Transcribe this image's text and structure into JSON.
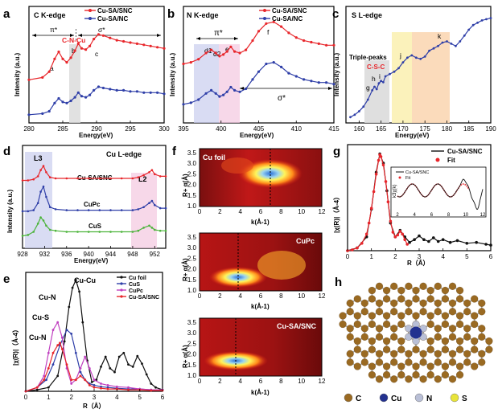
{
  "chart_data": [
    {
      "id": "a",
      "type": "line",
      "panel_label": "a",
      "title": "C K-edge",
      "xlabel": "Energy(eV)",
      "ylabel": "Intensity (a.u.)",
      "xlim": [
        280,
        300
      ],
      "xticks": [
        "280",
        "285",
        "290",
        "295",
        "300"
      ],
      "series": [
        {
          "name": "Cu-SA/SNC",
          "color": "#e8262b",
          "x": [
            280,
            282,
            283,
            283.8,
            284.4,
            285,
            285.6,
            286.2,
            286.8,
            287.3,
            287.8,
            288.4,
            289,
            289.6,
            290.3,
            291,
            292,
            293,
            294,
            295,
            296,
            297,
            298,
            299,
            300
          ],
          "y": [
            0.37,
            0.39,
            0.44,
            0.55,
            0.61,
            0.55,
            0.52,
            0.56,
            0.62,
            0.68,
            0.64,
            0.63,
            0.66,
            0.72,
            0.76,
            0.75,
            0.73,
            0.71,
            0.7,
            0.69,
            0.68,
            0.67,
            0.66,
            0.65,
            0.64
          ]
        },
        {
          "name": "Cu-SA/NC",
          "color": "#2f3fa8",
          "x": [
            280,
            282,
            283,
            283.8,
            284.4,
            285,
            285.6,
            286.2,
            286.8,
            287.3,
            287.8,
            288.4,
            289,
            289.6,
            290.3,
            291,
            292,
            293,
            294,
            295,
            296,
            297,
            298,
            299,
            300
          ],
          "y": [
            0.07,
            0.08,
            0.1,
            0.17,
            0.21,
            0.18,
            0.17,
            0.19,
            0.22,
            0.26,
            0.23,
            0.22,
            0.24,
            0.28,
            0.31,
            0.3,
            0.29,
            0.28,
            0.28,
            0.27,
            0.27,
            0.26,
            0.26,
            0.26,
            0.25
          ]
        }
      ],
      "annotations": [
        "π*",
        "σ*",
        "C-N-Cu",
        "a",
        "b",
        "c"
      ]
    },
    {
      "id": "b",
      "type": "line",
      "panel_label": "b",
      "title": "N K-edge",
      "xlabel": "Energy(eV)",
      "ylabel": "Intensity (a.u.)",
      "xlim": [
        395,
        415
      ],
      "xticks": [
        "395",
        "400",
        "405",
        "410",
        "415"
      ],
      "series": [
        {
          "name": "Cu-SA/SNC",
          "color": "#e8262b",
          "x": [
            395,
            396,
            397,
            398,
            398.7,
            399.3,
            399.8,
            400.3,
            400.8,
            401.3,
            401.8,
            402.5,
            403.3,
            404.2,
            405,
            406,
            407,
            408,
            409,
            410,
            411,
            412,
            413,
            414,
            415
          ],
          "y": [
            0.55,
            0.56,
            0.58,
            0.62,
            0.64,
            0.62,
            0.6,
            0.61,
            0.63,
            0.66,
            0.63,
            0.62,
            0.64,
            0.7,
            0.76,
            0.81,
            0.82,
            0.79,
            0.75,
            0.72,
            0.7,
            0.69,
            0.68,
            0.67,
            0.67
          ]
        },
        {
          "name": "Cu-SA/NC",
          "color": "#2f3fa8",
          "x": [
            395,
            396,
            397,
            398,
            398.7,
            399.3,
            399.8,
            400.3,
            400.8,
            401.3,
            401.8,
            402.5,
            403.3,
            404.2,
            405,
            406,
            407,
            408,
            409,
            410,
            411,
            412,
            413,
            414,
            415
          ],
          "y": [
            0.52,
            0.53,
            0.55,
            0.59,
            0.61,
            0.59,
            0.57,
            0.58,
            0.6,
            0.63,
            0.61,
            0.6,
            0.62,
            0.68,
            0.73,
            0.78,
            0.79,
            0.76,
            0.72,
            0.7,
            0.68,
            0.67,
            0.66,
            0.66,
            0.65
          ]
        }
      ],
      "annotations": [
        "π*",
        "σ*",
        "d1",
        "d2",
        "e",
        "f"
      ]
    },
    {
      "id": "c",
      "type": "line",
      "panel_label": "c",
      "title": "S L-edge",
      "xlabel": "Energy(eV)",
      "ylabel": "Intensity (a.u.)",
      "xlim": [
        157,
        190
      ],
      "xticks": [
        "160",
        "165",
        "170",
        "175",
        "180",
        "185",
        "190"
      ],
      "series": [
        {
          "name": "",
          "color": "#2f3fa8",
          "x": [
            158,
            159,
            160,
            161,
            162,
            163,
            163.5,
            164,
            164.5,
            165,
            165.5,
            166,
            167,
            168,
            169,
            170,
            171,
            172,
            173,
            174,
            175,
            176,
            177,
            178,
            179,
            180,
            181,
            182,
            183,
            184,
            185,
            186,
            187,
            188,
            189,
            190
          ],
          "y": [
            0.05,
            0.07,
            0.1,
            0.14,
            0.2,
            0.28,
            0.31,
            0.29,
            0.34,
            0.36,
            0.35,
            0.4,
            0.42,
            0.44,
            0.47,
            0.52,
            0.56,
            0.58,
            0.56,
            0.55,
            0.57,
            0.62,
            0.64,
            0.66,
            0.69,
            0.7,
            0.68,
            0.66,
            0.7,
            0.75,
            0.8,
            0.84,
            0.86,
            0.88,
            0.89,
            0.9
          ]
        }
      ],
      "annotations": [
        "Triple-peaks",
        "C-S-C",
        "g",
        "h",
        "i",
        "j",
        "k"
      ]
    },
    {
      "id": "d",
      "type": "line",
      "panel_label": "d",
      "title": "Cu L-edge",
      "xlabel": "Energy(eV)",
      "ylabel": "Intensity (a.u.)",
      "xlim": [
        928,
        954
      ],
      "xticks": [
        "928",
        "932",
        "936",
        "940",
        "944",
        "948",
        "952"
      ],
      "series": [
        {
          "name": "Cu-SA/SNC",
          "color": "#e8262b",
          "x": [
            928,
            929,
            930,
            930.8,
            931.3,
            931.8,
            932.3,
            933,
            934,
            936,
            938,
            940,
            942,
            944,
            946,
            948,
            949,
            950,
            951,
            951.5,
            952,
            953,
            954
          ],
          "y": [
            0.66,
            0.66,
            0.67,
            0.7,
            0.76,
            0.8,
            0.74,
            0.69,
            0.68,
            0.68,
            0.68,
            0.68,
            0.68,
            0.68,
            0.68,
            0.68,
            0.69,
            0.71,
            0.74,
            0.76,
            0.72,
            0.7,
            0.7
          ]
        },
        {
          "name": "CuPc",
          "color": "#2f3fa8",
          "x": [
            928,
            929,
            930,
            930.8,
            931.3,
            931.8,
            932.3,
            933,
            934,
            936,
            938,
            940,
            942,
            944,
            946,
            948,
            949,
            950,
            951,
            951.5,
            952,
            953,
            954
          ],
          "y": [
            0.36,
            0.36,
            0.37,
            0.44,
            0.55,
            0.6,
            0.5,
            0.4,
            0.38,
            0.37,
            0.37,
            0.37,
            0.37,
            0.37,
            0.37,
            0.37,
            0.38,
            0.4,
            0.44,
            0.46,
            0.42,
            0.39,
            0.39
          ]
        },
        {
          "name": "CuS",
          "color": "#4bb33a",
          "x": [
            928,
            929,
            930,
            930.8,
            931.3,
            931.8,
            932.3,
            933,
            934,
            936,
            938,
            940,
            942,
            944,
            946,
            948,
            949,
            950,
            951,
            951.5,
            952,
            953,
            954
          ],
          "y": [
            0.12,
            0.13,
            0.16,
            0.24,
            0.3,
            0.27,
            0.22,
            0.18,
            0.17,
            0.16,
            0.16,
            0.16,
            0.16,
            0.16,
            0.16,
            0.16,
            0.17,
            0.2,
            0.22,
            0.2,
            0.18,
            0.17,
            0.17
          ]
        }
      ],
      "annotations": [
        "L3",
        "L2"
      ]
    },
    {
      "id": "e",
      "type": "line",
      "panel_label": "e",
      "xlabel": "R（Å）",
      "ylabel": "|χ(R)|（Å-4）",
      "xlim": [
        0,
        6
      ],
      "xticks": [
        "0",
        "1",
        "2",
        "3",
        "4",
        "5",
        "6"
      ],
      "series": [
        {
          "name": "Cu foil",
          "color": "#111111",
          "x": [
            0,
            0.5,
            1,
            1.4,
            1.7,
            1.9,
            2.05,
            2.2,
            2.35,
            2.5,
            2.7,
            2.9,
            3.1,
            3.3,
            3.5,
            3.7,
            3.9,
            4.1,
            4.3,
            4.5,
            4.7,
            4.9,
            5.1,
            5.3,
            5.5,
            5.7,
            6
          ],
          "y": [
            0,
            0.2,
            0.5,
            2.0,
            6.5,
            11.0,
            13.5,
            14.5,
            13.0,
            9.0,
            4.0,
            1.2,
            1.5,
            3.2,
            4.5,
            3.0,
            2.5,
            4.5,
            5.0,
            3.5,
            3.2,
            4.6,
            3.6,
            2.2,
            1.0,
            0.5,
            0.2
          ]
        },
        {
          "name": "CuS",
          "color": "#2f3fa8",
          "x": [
            0,
            0.5,
            0.9,
            1.2,
            1.5,
            1.8,
            2.0,
            2.2,
            2.4,
            2.6,
            2.8,
            3.0,
            3.3,
            3.6,
            4,
            4.5,
            5,
            5.5,
            6
          ],
          "y": [
            0,
            0.5,
            1.5,
            3.5,
            6.0,
            8.0,
            7.5,
            5.0,
            2.5,
            1.5,
            1.0,
            0.8,
            0.6,
            0.5,
            0.4,
            0.3,
            0.3,
            0.2,
            0.2
          ]
        },
        {
          "name": "CuPc",
          "color": "#c040c0",
          "x": [
            0,
            0.5,
            0.8,
            1.0,
            1.2,
            1.4,
            1.6,
            1.8,
            2.0,
            2.2,
            2.4,
            2.6,
            2.8,
            3.0,
            3.3,
            3.6,
            4,
            4.5,
            5,
            5.5,
            6
          ],
          "y": [
            0,
            0.5,
            2.0,
            5.0,
            8.0,
            9.0,
            7.0,
            3.0,
            1.0,
            1.5,
            3.0,
            4.5,
            3.0,
            1.5,
            1.0,
            0.8,
            0.6,
            0.5,
            0.3,
            0.2,
            0.2
          ]
        },
        {
          "name": "Cu-SA/SNC",
          "color": "#e8262b",
          "x": [
            0,
            0.5,
            0.8,
            1.0,
            1.2,
            1.4,
            1.5,
            1.6,
            1.8,
            2.0,
            2.2,
            2.4,
            2.6,
            2.8,
            3.0,
            3.3,
            3.6,
            4,
            4.5,
            5,
            5.5,
            6
          ],
          "y": [
            0,
            0.5,
            1.5,
            3.0,
            5.0,
            6.0,
            6.3,
            5.5,
            3.5,
            1.5,
            1.5,
            2.0,
            1.5,
            0.8,
            0.5,
            0.4,
            0.3,
            0.3,
            0.2,
            0.2,
            0.1,
            0.1
          ]
        }
      ],
      "annotations": [
        "Cu-Cu",
        "Cu-N",
        "Cu-S",
        "Cu-N"
      ]
    },
    {
      "id": "f",
      "type": "heatmap",
      "panel_label": "f",
      "subplots": [
        {
          "label": "Cu foil",
          "peak_k": 6.8,
          "peak_r": 2.2
        },
        {
          "label": "CuPc",
          "peak_k": 4.0,
          "peak_r": 1.45
        },
        {
          "label": "Cu-SA/SNC",
          "peak_k": 3.6,
          "peak_r": 1.5
        }
      ],
      "xlabel": "k(Å-1)",
      "ylabel": "R+ α(Å)",
      "xticks": [
        "0",
        "2",
        "4",
        "6",
        "8",
        "10",
        "12"
      ],
      "yticks": [
        "1.0",
        "1.5",
        "2.0",
        "2.5",
        "3.0",
        "3.5"
      ]
    },
    {
      "id": "g",
      "type": "line",
      "panel_label": "g",
      "xlabel": "R（Å）",
      "ylabel": "|χ(R)|（Å-4）",
      "xlim": [
        0,
        6
      ],
      "xticks": [
        "0",
        "1",
        "2",
        "3",
        "4",
        "5",
        "6"
      ],
      "series": [
        {
          "name": "Cu-SA/SNC",
          "color": "#111111",
          "x": [
            0,
            0.4,
            0.8,
            1.0,
            1.2,
            1.35,
            1.5,
            1.65,
            1.8,
            2.0,
            2.2,
            2.4,
            2.6,
            2.8,
            3.0,
            3.2,
            3.4,
            3.6,
            3.8,
            4.0,
            4.3,
            4.6,
            5.0,
            5.4,
            5.8,
            6
          ],
          "y": [
            0,
            0.3,
            1.5,
            4.5,
            8.5,
            10.5,
            9.5,
            6.5,
            3.0,
            1.5,
            2.2,
            1.5,
            0.9,
            1.2,
            1.6,
            1.2,
            1.0,
            1.4,
            1.0,
            1.2,
            0.9,
            1.1,
            0.8,
            0.9,
            0.7,
            0.6
          ]
        },
        {
          "name": "Fit",
          "color": "#e8262b",
          "x": [
            0,
            0.2,
            0.4,
            0.6,
            0.8,
            0.9,
            1.0,
            1.1,
            1.2,
            1.3,
            1.35,
            1.4,
            1.5,
            1.6,
            1.7,
            1.8,
            1.9,
            2.0,
            2.1,
            2.2,
            2.3,
            2.4,
            2.5
          ],
          "y": [
            0,
            0.1,
            0.3,
            0.8,
            1.8,
            3.0,
            4.6,
            6.4,
            8.3,
            9.8,
            10.4,
            10.2,
            9.3,
            7.5,
            5.3,
            3.2,
            2.0,
            1.5,
            1.7,
            2.1,
            1.8,
            1.2,
            0.7
          ]
        }
      ],
      "inset": {
        "legend": [
          "Cu-SA/SNC",
          "Fit"
        ],
        "xticks": [
          "2",
          "4",
          "6",
          "8",
          "10",
          "12"
        ],
        "ylabel": "k3χ(k)"
      }
    },
    {
      "id": "h",
      "type": "diagram",
      "panel_label": "h",
      "legend": [
        {
          "label": "C",
          "color": "#9a6a22"
        },
        {
          "label": "Cu",
          "color": "#23318f"
        },
        {
          "label": "N",
          "color": "#b9bfd6"
        },
        {
          "label": "S",
          "color": "#e8e43a"
        }
      ]
    }
  ],
  "panel_a": {
    "label": "a",
    "title": "C K-edge",
    "pi": "π*",
    "sigma": "σ*",
    "cnc": "C-N-Cu",
    "pa": "a",
    "pb": "b",
    "pc": "c",
    "legend1": "Cu-SA/SNC",
    "legend2": "Cu-SA/NC",
    "ylabel": "Intensity (a.u.)",
    "xlabel": "Energy(eV)"
  },
  "panel_b": {
    "label": "b",
    "title": "N K-edge",
    "pi": "π*",
    "sigma": "σ*",
    "d1": "d1",
    "d2": "d2",
    "pe": "e",
    "pf": "f",
    "legend1": "Cu-SA/SNC",
    "legend2": "Cu-SA/NC",
    "ylabel": "Intensity (a.u.)",
    "xlabel": "Energy(eV)"
  },
  "panel_c": {
    "label": "c",
    "title": "S L-edge",
    "triple": "Triple-peaks",
    "csc": "C-S-C",
    "pg": "g",
    "ph": "h",
    "pi": "i",
    "pj": "j",
    "pk": "k",
    "ylabel": "Intensity (a.u.)",
    "xlabel": "Energy(eV)"
  },
  "panel_d": {
    "label": "d",
    "title": "Cu L-edge",
    "l3": "L3",
    "l2": "L2",
    "s1": "Cu-SA/SNC",
    "s2": "CuPc",
    "s3": "CuS",
    "ylabel": "Intensity (a.u.)",
    "xlabel": "Energy(eV)"
  },
  "panel_e": {
    "label": "e",
    "cucu": "Cu-Cu",
    "cun1": "Cu-N",
    "cus": "Cu-S",
    "cun2": "Cu-N",
    "ylabel": "|χ(R)|（Å-4）",
    "xlabel": "R（Å）",
    "leg": [
      "Cu foil",
      "CuS",
      "CuPc",
      "Cu-SA/SNC"
    ]
  },
  "panel_f": {
    "label": "f",
    "t1": "Cu foil",
    "t2": "CuPc",
    "t3": "Cu-SA/SNC",
    "ylabel": "R+ α(Å)",
    "xlabel": "k(Å-1)"
  },
  "panel_g": {
    "label": "g",
    "leg1": "Cu-SA/SNC",
    "leg2": "Fit",
    "ylabel": "|χ(R)|（Å-4）",
    "xlabel": "R（Å）"
  },
  "panel_h": {
    "label": "h"
  }
}
